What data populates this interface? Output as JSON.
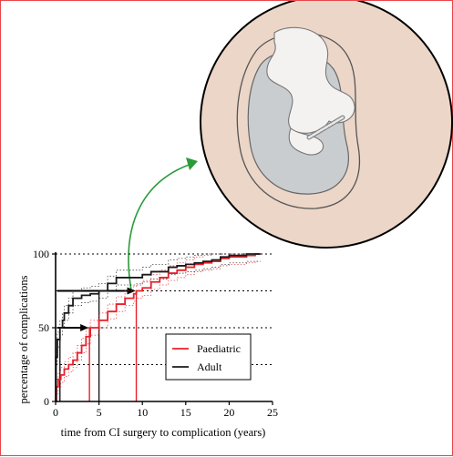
{
  "colors": {
    "paediatric": "#e8202a",
    "adult": "#1a1a1a",
    "frame": "#e8474b",
    "arrow": "#2b9a3a",
    "circle_fill": "#ecd6c8",
    "cavity_fill": "#c9cdcf"
  },
  "chart_data": {
    "type": "line",
    "xlabel": "time from CI surgery to complication (years)",
    "ylabel": "percentage of complications",
    "xlim": [
      0,
      25
    ],
    "ylim": [
      0,
      100
    ],
    "xticks": [
      "0",
      "5",
      "10",
      "15",
      "20",
      "25"
    ],
    "yticks": [
      "0",
      "50",
      "100"
    ],
    "reference_lines": [
      25,
      50,
      75,
      100
    ],
    "legend_position": "bottom-right",
    "series": [
      {
        "name": "Paediatric",
        "x": [
          0,
          0.1,
          0.3,
          0.6,
          1,
          1.5,
          2,
          2.5,
          3,
          3.5,
          4,
          5,
          6,
          7,
          8,
          9,
          9.3,
          10,
          11,
          12,
          13,
          14,
          15,
          16,
          17,
          18,
          19,
          20,
          21,
          22,
          23,
          23.6
        ],
        "y": [
          0,
          10,
          15,
          18,
          22,
          25,
          28,
          33,
          38,
          44,
          50,
          55,
          61,
          66,
          70,
          73,
          75,
          77,
          81,
          84,
          87,
          89,
          91,
          93,
          94,
          95,
          97,
          98,
          98,
          99,
          100,
          100
        ]
      },
      {
        "name": "Adult",
        "x": [
          0,
          0.05,
          0.2,
          0.5,
          0.8,
          1,
          1.5,
          2,
          3,
          4,
          5,
          6,
          7,
          8,
          9,
          10,
          11,
          12,
          13,
          14,
          15,
          16,
          17,
          18,
          19,
          20,
          21,
          22,
          23,
          23.6
        ],
        "y": [
          0,
          30,
          42,
          50,
          55,
          60,
          65,
          70,
          72,
          73,
          75,
          80,
          84,
          84,
          84,
          86,
          88,
          88,
          91,
          92,
          93,
          94,
          95,
          96,
          98,
          99,
          99,
          100,
          100,
          100
        ]
      }
    ],
    "medians": [
      {
        "series": "Paediatric",
        "percent": 50,
        "years": 3.9
      },
      {
        "series": "Adult",
        "percent": 50,
        "years": 0.5
      },
      {
        "series": "Paediatric",
        "percent": 75,
        "years": 9.3
      },
      {
        "series": "Adult",
        "percent": 75,
        "years": 5.0
      }
    ]
  }
}
